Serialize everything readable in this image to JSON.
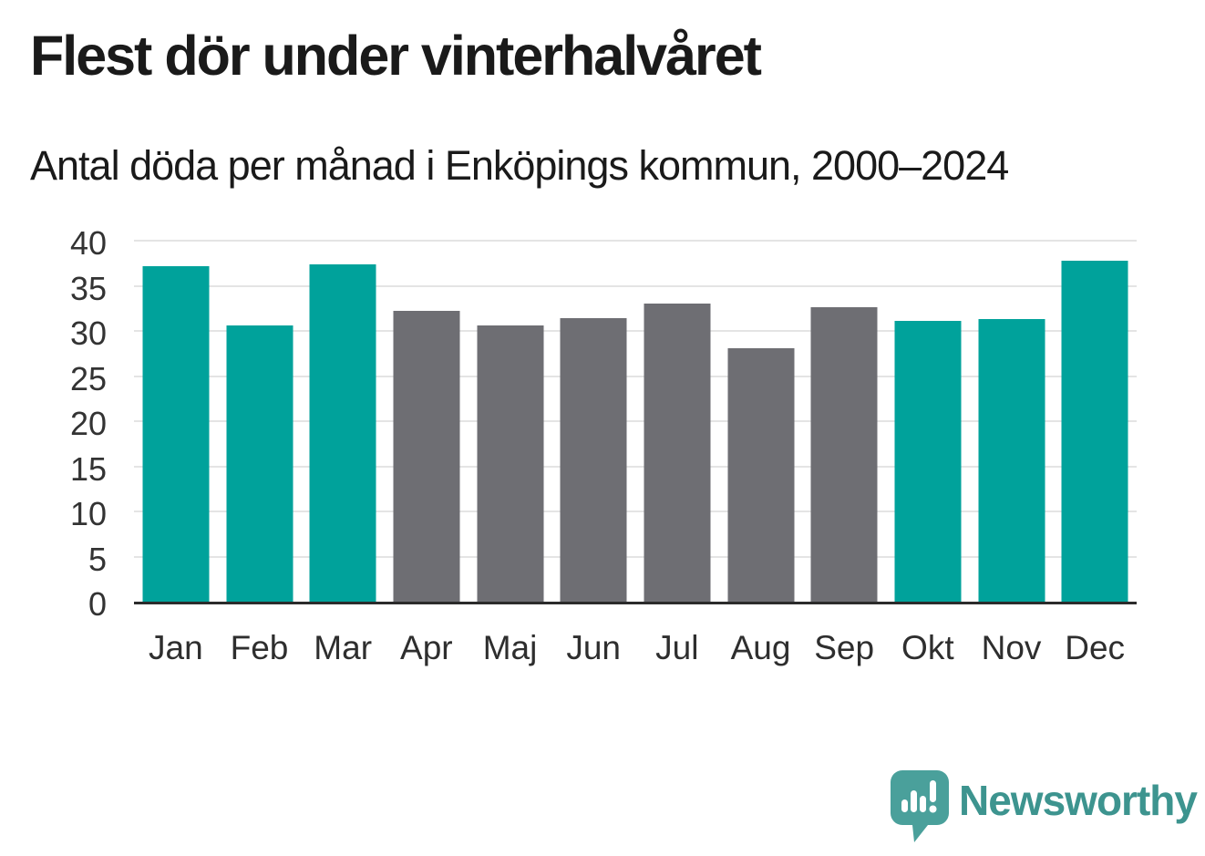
{
  "header": {
    "title": "Flest dör under vinterhalvåret",
    "subtitle": "Antal döda per månad i Enköpings kommun, 2000–2024"
  },
  "chart_data": {
    "type": "bar",
    "categories": [
      "Jan",
      "Feb",
      "Mar",
      "Apr",
      "Maj",
      "Jun",
      "Jul",
      "Aug",
      "Sep",
      "Okt",
      "Nov",
      "Dec"
    ],
    "values": [
      37.2,
      30.6,
      37.4,
      32.2,
      30.6,
      31.4,
      33.0,
      28.1,
      32.6,
      31.1,
      31.3,
      37.8
    ],
    "bar_colors": [
      "#00a29b",
      "#00a29b",
      "#00a29b",
      "#6e6e73",
      "#6e6e73",
      "#6e6e73",
      "#6e6e73",
      "#6e6e73",
      "#6e6e73",
      "#00a29b",
      "#00a29b",
      "#00a29b"
    ],
    "title": "Flest dör under vinterhalvåret",
    "subtitle": "Antal döda per månad i Enköpings kommun, 2000–2024",
    "xlabel": "",
    "ylabel": "",
    "ylim": [
      0,
      40
    ],
    "yticks": [
      0,
      5,
      10,
      15,
      20,
      25,
      30,
      35,
      40
    ],
    "grid": true,
    "legend": false,
    "highlight_meaning": "winter half-year months highlighted in teal, summer months gray"
  },
  "colors": {
    "highlight": "#00a29b",
    "muted": "#6e6e73",
    "gridline": "#e4e4e4",
    "axis_line": "#2b2b2b",
    "text": "#1a1a1a",
    "tick_text": "#333333",
    "logo_text": "#3d948f",
    "logo_icon": "#4aa09b"
  },
  "branding": {
    "logo_text": "Newsworthy"
  }
}
